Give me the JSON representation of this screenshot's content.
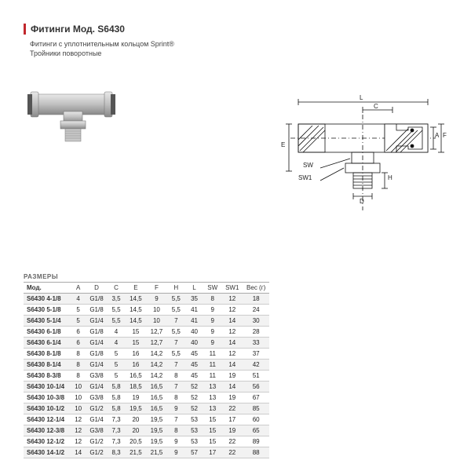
{
  "header": {
    "title": "Фитинги Мод. S6430",
    "subtitle_line1": "Фитинги с уплотнительным кольцом Sprint®",
    "subtitle_line2": "Тройники поворотные"
  },
  "sizes_label": "РАЗМЕРЫ",
  "diagram_labels": {
    "L": "L",
    "C": "C",
    "A": "A",
    "F": "F",
    "E": "E",
    "H": "H",
    "D": "D",
    "SW": "SW",
    "SW1": "SW1"
  },
  "table": {
    "columns": [
      "Мод.",
      "A",
      "D",
      "C",
      "E",
      "F",
      "H",
      "L",
      "SW",
      "SW1",
      "Вес (г)"
    ],
    "rows": [
      [
        "S6430 4-1/8",
        "4",
        "G1/8",
        "3,5",
        "14,5",
        "9",
        "5,5",
        "35",
        "8",
        "12",
        "18"
      ],
      [
        "S6430 5-1/8",
        "5",
        "G1/8",
        "5,5",
        "14,5",
        "10",
        "5,5",
        "41",
        "9",
        "12",
        "24"
      ],
      [
        "S6430 5-1/4",
        "5",
        "G1/4",
        "5,5",
        "14,5",
        "10",
        "7",
        "41",
        "9",
        "14",
        "30"
      ],
      [
        "S6430 6-1/8",
        "6",
        "G1/8",
        "4",
        "15",
        "12,7",
        "5,5",
        "40",
        "9",
        "12",
        "28"
      ],
      [
        "S6430 6-1/4",
        "6",
        "G1/4",
        "4",
        "15",
        "12,7",
        "7",
        "40",
        "9",
        "14",
        "33"
      ],
      [
        "S6430 8-1/8",
        "8",
        "G1/8",
        "5",
        "16",
        "14,2",
        "5,5",
        "45",
        "11",
        "12",
        "37"
      ],
      [
        "S6430 8-1/4",
        "8",
        "G1/4",
        "5",
        "16",
        "14,2",
        "7",
        "45",
        "11",
        "14",
        "42"
      ],
      [
        "S6430 8-3/8",
        "8",
        "G3/8",
        "5",
        "16,5",
        "14,2",
        "8",
        "45",
        "11",
        "19",
        "51"
      ],
      [
        "S6430 10-1/4",
        "10",
        "G1/4",
        "5,8",
        "18,5",
        "16,5",
        "7",
        "52",
        "13",
        "14",
        "56"
      ],
      [
        "S6430 10-3/8",
        "10",
        "G3/8",
        "5,8",
        "19",
        "16,5",
        "8",
        "52",
        "13",
        "19",
        "67"
      ],
      [
        "S6430 10-1/2",
        "10",
        "G1/2",
        "5,8",
        "19,5",
        "16,5",
        "9",
        "52",
        "13",
        "22",
        "85"
      ],
      [
        "S6430 12-1/4",
        "12",
        "G1/4",
        "7,3",
        "20",
        "19,5",
        "7",
        "53",
        "15",
        "17",
        "60"
      ],
      [
        "S6430 12-3/8",
        "12",
        "G3/8",
        "7,3",
        "20",
        "19,5",
        "8",
        "53",
        "15",
        "19",
        "65"
      ],
      [
        "S6430 12-1/2",
        "12",
        "G1/2",
        "7,3",
        "20,5",
        "19,5",
        "9",
        "53",
        "15",
        "22",
        "89"
      ],
      [
        "S6430 14-1/2",
        "14",
        "G1/2",
        "8,3",
        "21,5",
        "21,5",
        "9",
        "57",
        "17",
        "22",
        "88"
      ]
    ],
    "col_widths_pct": [
      18,
      6,
      8,
      7,
      8,
      8,
      7,
      7,
      7,
      8,
      9
    ],
    "header_bg": "#ffffff",
    "row_alt_bg": "#f2f2f2",
    "border_color": "#cccccc",
    "font_size_pt": 8
  },
  "colors": {
    "accent": "#c1272d",
    "text": "#222222",
    "grid": "#cccccc",
    "bg": "#ffffff"
  }
}
